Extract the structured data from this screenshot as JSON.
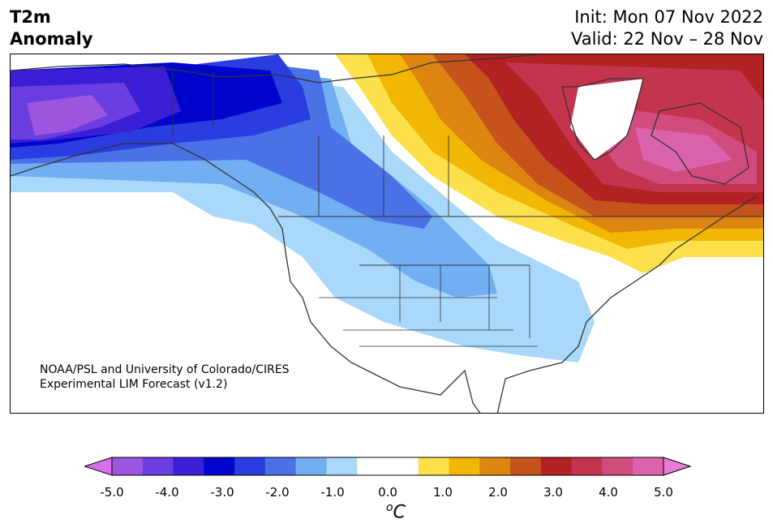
{
  "header": {
    "title_line1": "T2m",
    "title_line2": "Anomaly",
    "init": "Init: Mon 07 Nov 2022",
    "valid": "Valid: 22 Nov – 28 Nov"
  },
  "credit": {
    "line1": "NOAA/PSL and University of Colorado/CIRES",
    "line2": "Experimental LIM Forecast (v1.2)"
  },
  "colorbar": {
    "unit_base": "C",
    "unit_sup": "o",
    "ticks": [
      "-5.0",
      "-4.0",
      "-3.0",
      "-2.0",
      "-1.0",
      "0.0",
      "1.0",
      "2.0",
      "3.0",
      "4.0",
      "5.0"
    ],
    "colors": [
      "#d670e8",
      "#9b55de",
      "#6a3ee0",
      "#3b1fd6",
      "#0005cc",
      "#2a3de0",
      "#4a72e6",
      "#72aef2",
      "#a9d8fb",
      "#ffffff",
      "#ffffff",
      "#fde14c",
      "#f2b705",
      "#dc8510",
      "#c5531b",
      "#b22222",
      "#c4344e",
      "#d04c7e",
      "#db63ac",
      "#e97bd9"
    ]
  },
  "legend_colors": {
    "cold_extreme": "#d670e8",
    "warm_extreme": "#e97bd9"
  }
}
